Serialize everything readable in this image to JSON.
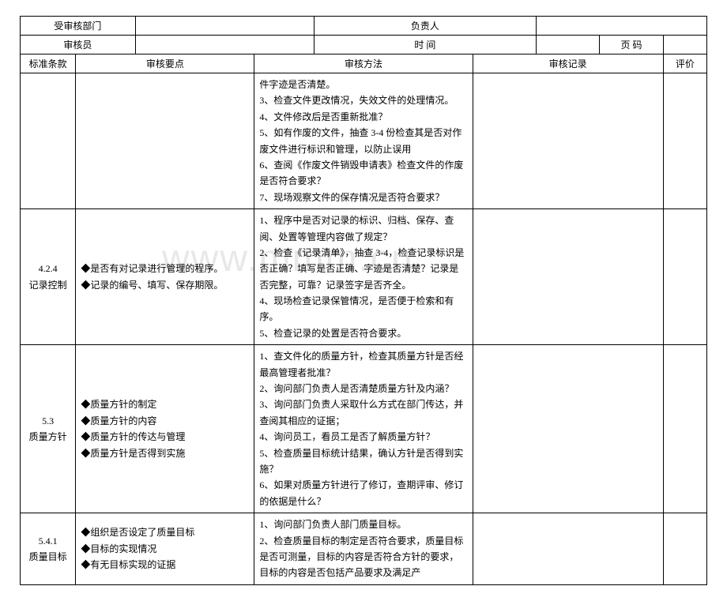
{
  "header": {
    "dept_label": "受审核部门",
    "owner_label": "负责人",
    "auditor_label": "审核员",
    "time_label": "时 间",
    "page_label": "页 码"
  },
  "columns": {
    "clause": "标准条款",
    "points": "审核要点",
    "methods": "审核方法",
    "record": "审核记录",
    "eval": "评价"
  },
  "rows": [
    {
      "clause": "",
      "points": "",
      "methods": "件字迹是否清楚。\n3、检查文件更改情况，失效文件的处理情况。\n4、文件修改后是否重新批准？\n5、如有作废的文件，抽查 3-4 份检查其是否对作废文件进行标识和管理，以防止误用\n6、查阅《作废文件销毁申请表》检查文件的作废是否符合要求？\n7、现场观察文件的保存情况是否符合要求？"
    },
    {
      "clause": "4.2.4\n记录控制",
      "points": "◆是否有对记录进行管理的程序。\n◆记录的编号、填写、保存期限。",
      "methods": "1、程序中是否对记录的标识、归档、保存、查阅、处置等管理内容做了规定？\n2、检查《记录清单》，抽查 3-4，检查记录标识是否正确？填写是否正确、字迹是否清楚？记录是否完整，可靠？记录签字是否齐全。\n4、现场检查记录保管情况，是否便于检索和有序。\n5、检查记录的处置是否符合要求。"
    },
    {
      "clause": "5.3\n质量方针",
      "points": "◆质量方针的制定\n◆质量方针的内容\n◆质量方针的传达与管理\n◆质量方针是否得到实施",
      "methods": "1、查文件化的质量方针，检查其质量方针是否经最高管理者批准？\n2、询问部门负责人是否清楚质量方针及内涵？\n3、询问部门负责人采取什么方式在部门传达，并查阅其相应的证据；\n4、询问员工，看员工是否了解质量方针？\n5、检查质量目标统计结果，确认方针是否得到实施？\n6、如果对质量方针进行了修订，查期评审、修订的依据是什么？"
    },
    {
      "clause": "5.4.1\n质量目标",
      "points": "◆组织是否设定了质量目标\n◆目标的实现情况\n◆有无目标实现的证据",
      "methods": "1、询问部门负责人部门质量目标。\n2、检查质量目标的制定是否符合要求，质量目标是否可测量，目标的内容是否符合方针的要求，目标的内容是否包括产品要求及满足产"
    }
  ],
  "watermark": "www.mmm.cn",
  "col_widths": {
    "clause": 70,
    "points": 225,
    "methods": 275,
    "record": 240,
    "eval": 55
  }
}
